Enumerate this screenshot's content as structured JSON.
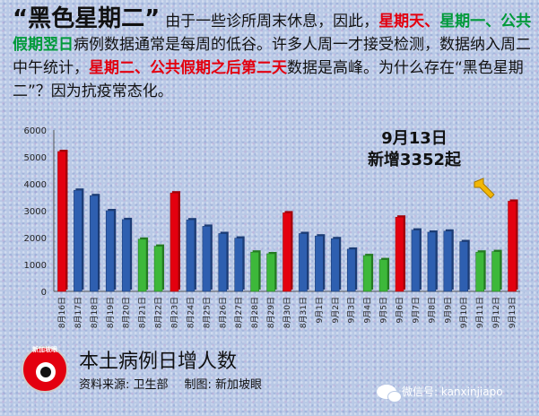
{
  "headline": {
    "term": "“黑色星期二”",
    "p1": "由于一些诊所周末休息，因此，",
    "r1": "星期天、",
    "g1": "星期一、公共假期翌日",
    "p2": "病例数据通常是每周的低谷。许多人周一才接受检测，数据纳入周二中午统计，",
    "r2": "星期二、公共假期之后第二天",
    "p3": "数据是高峰。为什么存在“黑色星期二”？因为抗疫常态化。"
  },
  "callout": {
    "line1": "9月13日",
    "line2": "新增3352起"
  },
  "colors": {
    "red": "#e3000f",
    "blue": "#2e5fb0",
    "green": "#3db83a"
  },
  "chart_data": {
    "type": "bar",
    "title": "本土病例日增人数",
    "categories": [
      "8月16日",
      "8月17日",
      "8月18日",
      "8月19日",
      "8月20日",
      "8月21日",
      "8月22日",
      "8月23日",
      "8月24日",
      "8月25日",
      "8月26日",
      "8月27日",
      "8月28日",
      "8月29日",
      "8月30日",
      "8月31日",
      "9月1日",
      "9月2日",
      "9月3日",
      "9月4日",
      "9月5日",
      "9月6日",
      "9月7日",
      "9月8日",
      "9月9日",
      "9月10日",
      "9月11日",
      "9月12日",
      "9月13日"
    ],
    "values": [
      5200,
      3760,
      3560,
      3000,
      2670,
      1940,
      1680,
      3660,
      2660,
      2420,
      2150,
      1980,
      1460,
      1400,
      2920,
      2150,
      2060,
      1960,
      1570,
      1330,
      1180,
      2760,
      2280,
      2200,
      2240,
      1850,
      1460,
      1480,
      3352
    ],
    "bar_colors": [
      "red",
      "blue",
      "blue",
      "blue",
      "blue",
      "green",
      "green",
      "red",
      "blue",
      "blue",
      "blue",
      "blue",
      "green",
      "green",
      "red",
      "blue",
      "blue",
      "blue",
      "blue",
      "green",
      "green",
      "red",
      "blue",
      "blue",
      "blue",
      "blue",
      "green",
      "green",
      "red"
    ],
    "y_ticks": [
      0,
      1000,
      2000,
      3000,
      4000,
      5000,
      6000
    ],
    "ylim": [
      0,
      6000
    ],
    "xlabel": "",
    "ylabel": "",
    "grid": false
  },
  "footer": {
    "source": "资料来源:  卫生部",
    "credit": "制图:  新加坡眼",
    "logo_text": "新加坡眼",
    "wechat": "微信号: kanxinjiapo"
  }
}
